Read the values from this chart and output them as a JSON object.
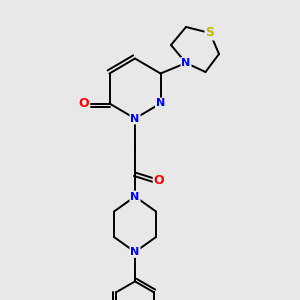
{
  "bg_color": "#e8e8e8",
  "atom_color_N": "#0000ff",
  "atom_color_O": "#ff0000",
  "atom_color_S": "#bbbb00",
  "bond_color": "#000000",
  "bond_width": 1.4,
  "font_size_atom": 8,
  "xlim": [
    0,
    10
  ],
  "ylim": [
    0,
    10
  ]
}
